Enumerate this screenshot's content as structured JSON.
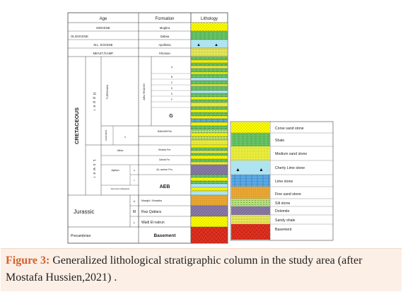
{
  "column_headers": {
    "age": "Age",
    "formation": "Formation",
    "lithology": "Lithology"
  },
  "top_ages": [
    "MIOCENE",
    "OLIGOCENE",
    "M.L. EOCENE",
    "MEAST./CAMP."
  ],
  "top_formations": [
    "Moghra",
    "Dabaa",
    "Apollonia",
    "Khoman"
  ],
  "cretaceous": {
    "label": "CRETACEOUS",
    "upper": "Upper",
    "lower": "Lower",
    "turonian": "TURONIAN",
    "cenomanian": "CENOMAN.",
    "cenomanian_part": "n",
    "albian": "Albian",
    "aptian": "Aptian",
    "aptian_sub_top": "U",
    "aptian_sub_bottom": "L",
    "barr_valang": "barremian/ Valanginian",
    "abu_roash_label": "ABU ROASH",
    "abu_roash_members": [
      "A",
      "B",
      "C",
      "D",
      "E",
      "F"
    ],
    "abu_roash_g": "G",
    "bahariya": "BAHARIYA",
    "kharita": "Kharita Fm.",
    "dahab": "Dahab Fm.",
    "alamein": "AL amine Fm.",
    "aeb": "AEB"
  },
  "jurassic": {
    "label": "Jurassic",
    "sub_u": "U",
    "sub_m": "M",
    "sub_l": "L",
    "masajid": "Masajid / Khatatba",
    "ras_qattara": "Ras Qattara",
    "wadi_el_natrun": "Wadi El natrun"
  },
  "precambrian": {
    "label": "Precambrian",
    "formation": "Basement"
  },
  "legend": [
    "Corse sand stone",
    "Shale",
    "Medium sand stone",
    "Cherty Lime stone",
    "Lime stone",
    "Fine sand stone",
    "Silt stone",
    "Dolomite",
    "Sandy shale",
    "Basement"
  ],
  "caption": {
    "label": "Figure 3:",
    "text": " Generalized lithological stratigraphic column in the study area (after Mostafa Hussien,2021) ."
  },
  "colors": {
    "coarse_sandstone": "#ffff00",
    "shale": "#66c266",
    "medium_sandstone": "#e8ea3c",
    "cherty_limestone": "#aee4f0",
    "limestone": "#5aa9e6",
    "fine_sandstone": "#e8a632",
    "siltstone": "#b5e07a",
    "dolomite": "#8a7aa8",
    "sandy_shale": "#e6e65a",
    "basement": "#e53020",
    "caption_label": "#d4602c"
  }
}
